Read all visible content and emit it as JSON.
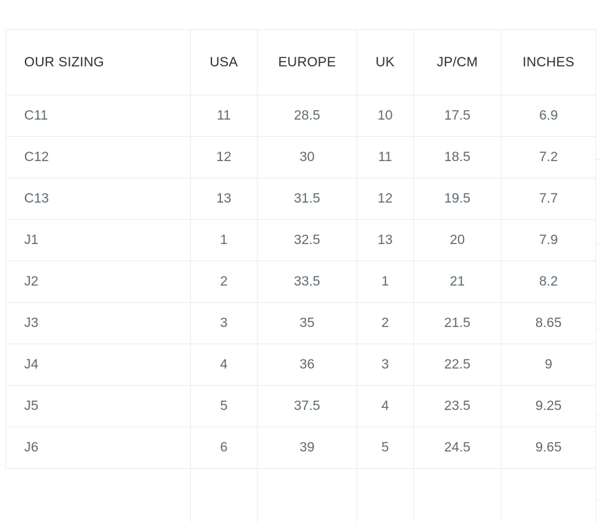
{
  "size_chart": {
    "columns": [
      "OUR SIZING",
      "USA",
      "EUROPE",
      "UK",
      "JP/CM",
      "INCHES"
    ],
    "rows": [
      [
        "C11",
        "11",
        "28.5",
        "10",
        "17.5",
        "6.9"
      ],
      [
        "C12",
        "12",
        "30",
        "11",
        "18.5",
        "7.2"
      ],
      [
        "C13",
        "13",
        "31.5",
        "12",
        "19.5",
        "7.7"
      ],
      [
        "J1",
        "1",
        "32.5",
        "13",
        "20",
        "7.9"
      ],
      [
        "J2",
        "2",
        "33.5",
        "1",
        "21",
        "8.2"
      ],
      [
        "J3",
        "3",
        "35",
        "2",
        "21.5",
        "8.65"
      ],
      [
        "J4",
        "4",
        "36",
        "3",
        "22.5",
        "9"
      ],
      [
        "J5",
        "5",
        "37.5",
        "4",
        "23.5",
        "9.25"
      ],
      [
        "J6",
        "6",
        "39",
        "5",
        "24.5",
        "9.65"
      ]
    ],
    "colors": {
      "header_text": "#2a2f33",
      "cell_text": "#5e6970",
      "border": "#e6edf0",
      "background": "#ffffff"
    }
  }
}
